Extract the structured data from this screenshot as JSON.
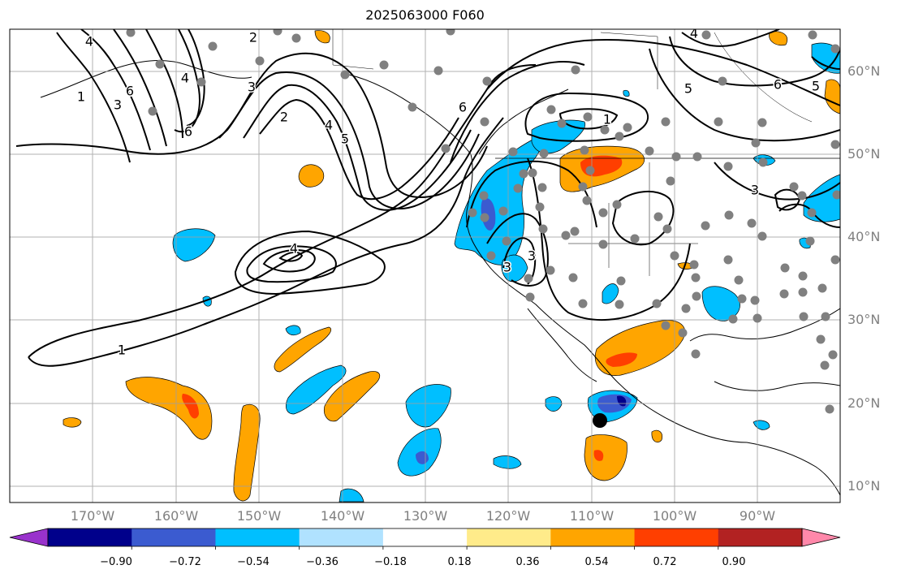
{
  "title": "2025063000 F060",
  "colors": {
    "frame": "#000000",
    "gridline": "#a0a0a0",
    "tick_label": "#808080",
    "station_dot": "#808080",
    "marker": "#000000",
    "contour": "#000000"
  },
  "map": {
    "projection": "plate-carree",
    "extent_lon": [
      -180,
      -80
    ],
    "extent_lat": [
      8,
      65
    ],
    "gridlines": true,
    "lon_labels": [
      "170°W",
      "160°W",
      "150°W",
      "140°W",
      "130°W",
      "120°W",
      "110°W",
      "100°W",
      "90°W"
    ],
    "lat_labels": [
      "60°N",
      "50°N",
      "40°N",
      "30°N",
      "20°N",
      "10°N"
    ],
    "marker_location": {
      "lon": -109,
      "lat": 18
    }
  },
  "contour_labels": [
    "4",
    "6",
    "2",
    "1",
    "3",
    "6",
    "4",
    "3",
    "2",
    "5",
    "6",
    "4",
    "1",
    "6",
    "5",
    "3",
    "3",
    "4",
    "3",
    "4",
    "5",
    "1"
  ],
  "colorbar": {
    "extend": "both",
    "tick_labels": [
      "−0.90",
      "−0.72",
      "−0.54",
      "−0.36",
      "−0.18",
      "0.18",
      "0.36",
      "0.54",
      "0.72",
      "0.90"
    ],
    "segment_colors": [
      "#9932cc",
      "#00008b",
      "#3b5bd0",
      "#00bfff",
      "#b0e2ff",
      "#ffffff",
      "#ffeb8a",
      "#ffa500",
      "#ff3f00",
      "#b22222",
      "#ff88aa"
    ]
  }
}
